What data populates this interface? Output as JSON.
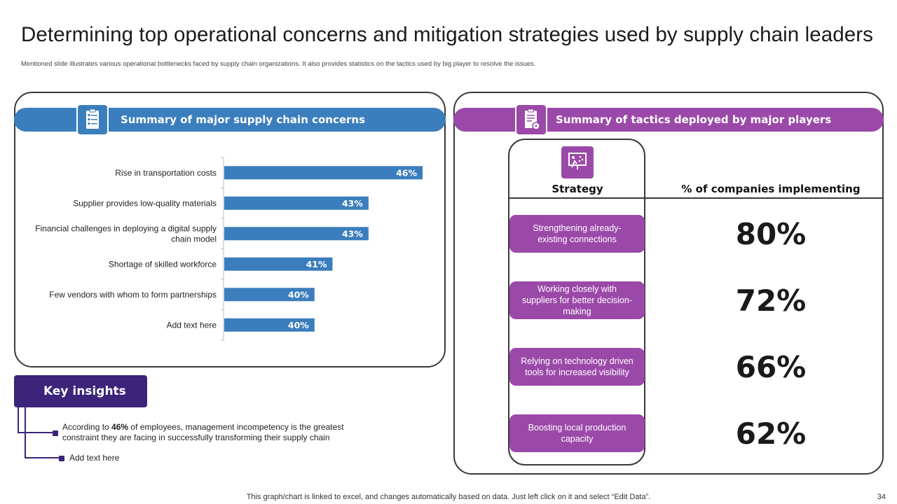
{
  "header": {
    "title": "Determining top operational concerns and mitigation strategies used by supply chain leaders",
    "subtitle": "Mentioned slide illustrates various operational bottlenecks faced by supply chain organizations. It also provides statistics on the tactics used by big player to resolve the issues."
  },
  "left_panel": {
    "banner": "Summary of major supply chain concerns",
    "icon": "checklist-icon"
  },
  "chart_data": {
    "type": "bar",
    "orientation": "horizontal",
    "categories": [
      "Rise in transportation costs",
      "Supplier provides low-quality materials",
      "Financial challenges in deploying a digital supply chain model",
      "Shortage of skilled workforce",
      "Few vendors with whom to form partnerships",
      "Add text here"
    ],
    "category_lines": [
      [
        "Rise in transportation costs"
      ],
      [
        "Supplier provides low-quality materials"
      ],
      [
        "Financial challenges in deploying a digital supply",
        "chain model"
      ],
      [
        "Shortage of skilled workforce"
      ],
      [
        "Few vendors with whom to form partnerships"
      ],
      [
        "Add text here"
      ]
    ],
    "values": [
      46,
      43,
      43,
      41,
      40,
      40
    ],
    "value_labels": [
      "46%",
      "43%",
      "43%",
      "41%",
      "40%",
      "40%"
    ],
    "xlim": [
      36,
      46
    ],
    "color": "#3b7ebd",
    "title": "Summary of major supply chain concerns"
  },
  "insights": {
    "title": "Key insights",
    "item1_pre": "According to ",
    "item1_bold": "46%",
    "item1_post": " of employees, management incompetency is the greatest constraint they are facing in successfully transforming their supply chain",
    "item2": "Add text here"
  },
  "right_panel": {
    "banner": "Summary of tactics deployed by major players",
    "icon": "clipboard-icon",
    "strategy_icon": "presentation-icon",
    "col_strategy": "Strategy",
    "col_percent": "% of companies implementing",
    "rows": [
      {
        "strategy": "Strengthening already-existing connections",
        "percent": "80%"
      },
      {
        "strategy": "Working closely with suppliers for better decision-making",
        "percent": "72%"
      },
      {
        "strategy": "Relying on technology driven  tools for increased visibility",
        "percent": "66%"
      },
      {
        "strategy": "Boosting local production capacity",
        "percent": "62%"
      }
    ]
  },
  "footer": {
    "note": "This graph/chart is linked to excel,  and changes automatically based on data. Just left click on it and select “Edit Data”.",
    "page_number": "34"
  },
  "colors": {
    "blue": "#3b7ebd",
    "purple": "#9b49a8",
    "dark_purple": "#3b2479"
  }
}
